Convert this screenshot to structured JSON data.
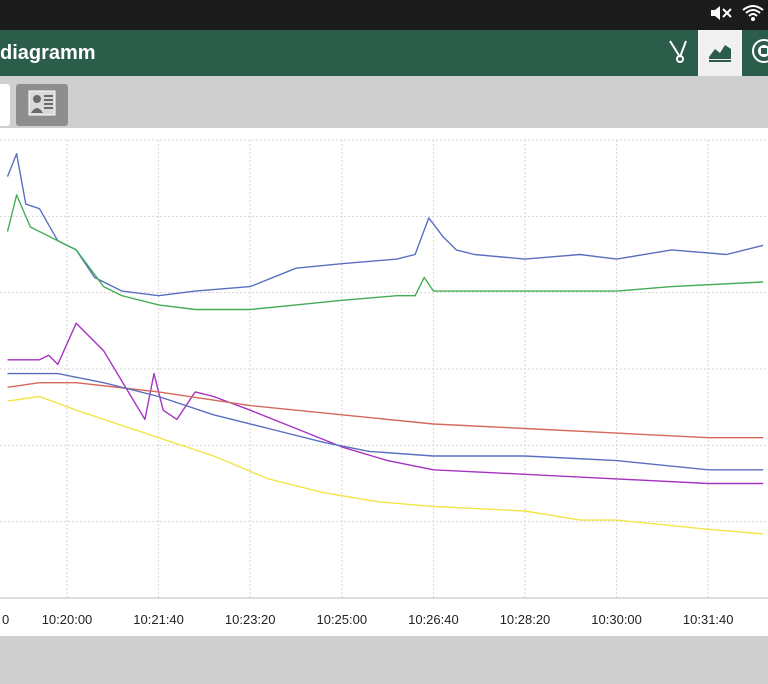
{
  "app": {
    "title": "diagramm"
  },
  "status_bar": {
    "icons": [
      "mute-icon",
      "wifi-icon"
    ]
  },
  "toolbar": {
    "actions": [
      "probe-icon",
      "line-chart-icon",
      "settings-icon"
    ],
    "active": "line-chart-icon"
  },
  "tabs": {
    "items": [
      "chart-tab",
      "report-tab"
    ]
  },
  "colors": {
    "blue": "#5b6fc0",
    "green": "#43ad55",
    "purple": "#a632c0",
    "red": "#d4695a",
    "yellow": "#f2e548",
    "grid": "#d6d6d6",
    "appbar": "#2c5c4a"
  },
  "chart_data": {
    "type": "line",
    "x_ticks": [
      "10:20:00",
      "10:21:40",
      "10:23:20",
      "10:25:00",
      "10:26:40",
      "10:28:20",
      "10:30:00",
      "10:31:40"
    ],
    "x_first_tick_partial": "0",
    "series": [
      {
        "color": "blue",
        "points": [
          [
            "10:18:55",
            0.92
          ],
          [
            "10:19:05",
            0.97
          ],
          [
            "10:19:15",
            0.86
          ],
          [
            "10:19:30",
            0.85
          ],
          [
            "10:19:50",
            0.78
          ],
          [
            "10:20:10",
            0.76
          ],
          [
            "10:20:30",
            0.7
          ],
          [
            "10:21:00",
            0.67
          ],
          [
            "10:21:40",
            0.66
          ],
          [
            "10:22:20",
            0.67
          ],
          [
            "10:23:20",
            0.68
          ],
          [
            "10:24:10",
            0.72
          ],
          [
            "10:25:00",
            0.73
          ],
          [
            "10:26:00",
            0.74
          ],
          [
            "10:26:20",
            0.75
          ],
          [
            "10:26:35",
            0.83
          ],
          [
            "10:26:50",
            0.79
          ],
          [
            "10:27:05",
            0.76
          ],
          [
            "10:27:25",
            0.75
          ],
          [
            "10:28:20",
            0.74
          ],
          [
            "10:29:20",
            0.75
          ],
          [
            "10:30:00",
            0.74
          ],
          [
            "10:31:00",
            0.76
          ],
          [
            "10:32:00",
            0.75
          ],
          [
            "10:32:40",
            0.77
          ]
        ]
      },
      {
        "color": "green",
        "points": [
          [
            "10:18:55",
            0.8
          ],
          [
            "10:19:05",
            0.88
          ],
          [
            "10:19:20",
            0.81
          ],
          [
            "10:19:50",
            0.78
          ],
          [
            "10:20:10",
            0.76
          ],
          [
            "10:20:40",
            0.68
          ],
          [
            "10:21:00",
            0.66
          ],
          [
            "10:21:40",
            0.64
          ],
          [
            "10:22:20",
            0.63
          ],
          [
            "10:23:20",
            0.63
          ],
          [
            "10:24:10",
            0.64
          ],
          [
            "10:25:00",
            0.65
          ],
          [
            "10:26:00",
            0.66
          ],
          [
            "10:26:20",
            0.66
          ],
          [
            "10:26:30",
            0.7
          ],
          [
            "10:26:40",
            0.67
          ],
          [
            "10:27:30",
            0.67
          ],
          [
            "10:28:20",
            0.67
          ],
          [
            "10:30:00",
            0.67
          ],
          [
            "10:31:00",
            0.68
          ],
          [
            "10:32:40",
            0.69
          ]
        ]
      },
      {
        "color": "purple",
        "points": [
          [
            "10:18:55",
            0.52
          ],
          [
            "10:19:30",
            0.52
          ],
          [
            "10:19:40",
            0.53
          ],
          [
            "10:19:50",
            0.51
          ],
          [
            "10:20:10",
            0.6
          ],
          [
            "10:20:40",
            0.54
          ],
          [
            "10:21:10",
            0.44
          ],
          [
            "10:21:25",
            0.39
          ],
          [
            "10:21:35",
            0.49
          ],
          [
            "10:21:45",
            0.41
          ],
          [
            "10:22:00",
            0.39
          ],
          [
            "10:22:20",
            0.45
          ],
          [
            "10:22:40",
            0.44
          ],
          [
            "10:23:20",
            0.41
          ],
          [
            "10:24:10",
            0.37
          ],
          [
            "10:25:00",
            0.33
          ],
          [
            "10:25:50",
            0.3
          ],
          [
            "10:26:40",
            0.28
          ],
          [
            "10:28:20",
            0.27
          ],
          [
            "10:30:00",
            0.26
          ],
          [
            "10:31:40",
            0.25
          ],
          [
            "10:32:40",
            0.25
          ]
        ]
      },
      {
        "color": "red",
        "points": [
          [
            "10:18:55",
            0.46
          ],
          [
            "10:19:30",
            0.47
          ],
          [
            "10:20:10",
            0.47
          ],
          [
            "10:21:40",
            0.45
          ],
          [
            "10:23:20",
            0.42
          ],
          [
            "10:25:00",
            0.4
          ],
          [
            "10:26:40",
            0.38
          ],
          [
            "10:28:20",
            0.37
          ],
          [
            "10:30:00",
            0.36
          ],
          [
            "10:31:40",
            0.35
          ],
          [
            "10:32:40",
            0.35
          ]
        ]
      },
      {
        "color": "blue",
        "points": [
          [
            "10:18:55",
            0.49
          ],
          [
            "10:19:50",
            0.49
          ],
          [
            "10:20:40",
            0.47
          ],
          [
            "10:21:40",
            0.44
          ],
          [
            "10:22:40",
            0.4
          ],
          [
            "10:23:40",
            0.37
          ],
          [
            "10:24:40",
            0.34
          ],
          [
            "10:25:30",
            0.32
          ],
          [
            "10:26:40",
            0.31
          ],
          [
            "10:28:20",
            0.31
          ],
          [
            "10:30:00",
            0.3
          ],
          [
            "10:31:40",
            0.28
          ],
          [
            "10:32:40",
            0.28
          ]
        ]
      },
      {
        "color": "yellow",
        "points": [
          [
            "10:18:55",
            0.43
          ],
          [
            "10:19:30",
            0.44
          ],
          [
            "10:20:10",
            0.41
          ],
          [
            "10:21:40",
            0.35
          ],
          [
            "10:22:40",
            0.31
          ],
          [
            "10:23:40",
            0.26
          ],
          [
            "10:24:40",
            0.23
          ],
          [
            "10:25:40",
            0.21
          ],
          [
            "10:26:40",
            0.2
          ],
          [
            "10:28:20",
            0.19
          ],
          [
            "10:29:20",
            0.17
          ],
          [
            "10:30:00",
            0.17
          ],
          [
            "10:31:40",
            0.15
          ],
          [
            "10:32:40",
            0.14
          ]
        ]
      }
    ]
  }
}
